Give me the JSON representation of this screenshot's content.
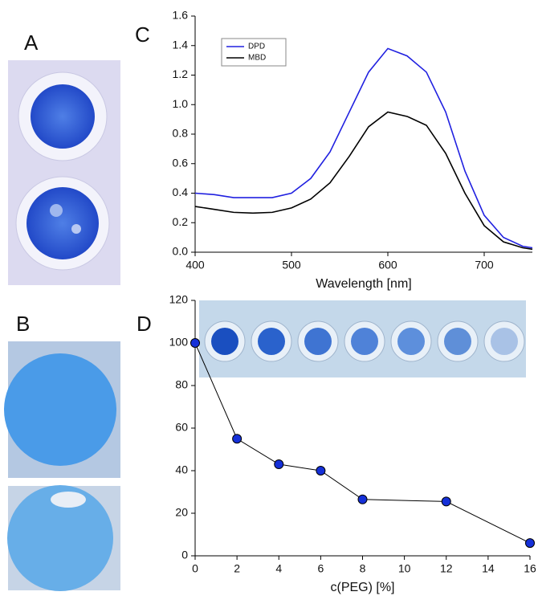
{
  "panel_labels": [
    "A",
    "B",
    "C",
    "D"
  ],
  "chart_data": [
    {
      "type": "line",
      "xlabel": "Wavelength [nm]",
      "x": [
        400,
        420,
        440,
        460,
        480,
        500,
        520,
        540,
        560,
        580,
        600,
        620,
        640,
        660,
        680,
        700,
        720,
        740,
        750
      ],
      "series": [
        {
          "name": "DPD",
          "color": "#2020e0",
          "values": [
            0.4,
            0.39,
            0.37,
            0.37,
            0.37,
            0.4,
            0.5,
            0.68,
            0.95,
            1.22,
            1.38,
            1.33,
            1.22,
            0.95,
            0.55,
            0.25,
            0.1,
            0.04,
            0.03
          ]
        },
        {
          "name": "MBD",
          "color": "#000000",
          "values": [
            0.31,
            0.29,
            0.27,
            0.265,
            0.27,
            0.3,
            0.36,
            0.47,
            0.65,
            0.85,
            0.95,
            0.92,
            0.86,
            0.67,
            0.4,
            0.18,
            0.07,
            0.03,
            0.02
          ]
        }
      ],
      "xlim": [
        400,
        750
      ],
      "xticks": [
        400,
        500,
        600,
        700
      ],
      "ylim": [
        0,
        1.6
      ],
      "yticks": [
        {
          "value": 0,
          "label": "0.0"
        },
        0.2,
        0.4,
        0.6,
        0.8,
        {
          "value": 1,
          "label": "1.0"
        },
        1.2,
        1.4,
        1.6
      ],
      "legend": "upper left"
    },
    {
      "type": "scatter",
      "xlabel": "c(PEG) [%]",
      "lines": true,
      "color": "#1530d8",
      "x": [
        0,
        2,
        4,
        6,
        8,
        12,
        16
      ],
      "values": [
        100,
        55,
        43,
        40,
        26.5,
        25.5,
        6
      ],
      "xlim": [
        0,
        16
      ],
      "xticks": [
        0,
        2,
        4,
        6,
        8,
        10,
        12,
        14,
        16
      ],
      "ylim": [
        0,
        120
      ],
      "yticks": [
        0,
        20,
        40,
        60,
        80,
        100,
        120
      ]
    }
  ]
}
